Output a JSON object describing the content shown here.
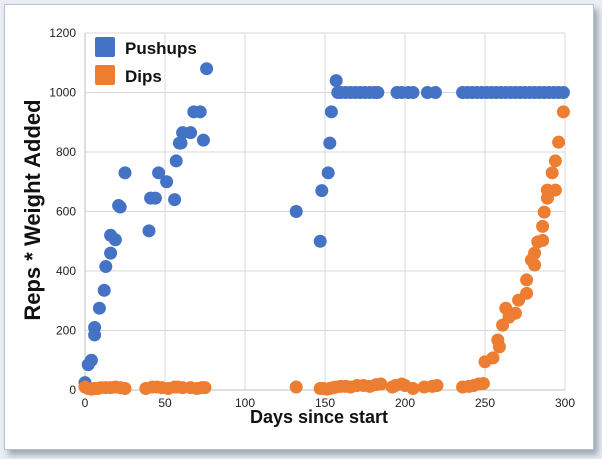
{
  "chart_data": {
    "type": "scatter",
    "title": "",
    "xlabel": "Days since start",
    "ylabel": "Reps * Weight Added",
    "xlim": [
      0,
      300
    ],
    "ylim": [
      0,
      1200
    ],
    "xticks": [
      0,
      50,
      100,
      150,
      200,
      250,
      300
    ],
    "yticks": [
      0,
      200,
      400,
      600,
      800,
      1000,
      1200
    ],
    "grid": true,
    "legend_position": "top-left",
    "series": [
      {
        "name": "Pushups",
        "color": "#4472c4",
        "points": [
          [
            0,
            25
          ],
          [
            2,
            85
          ],
          [
            4,
            100
          ],
          [
            6,
            185
          ],
          [
            6,
            210
          ],
          [
            9,
            275
          ],
          [
            12,
            335
          ],
          [
            13,
            415
          ],
          [
            16,
            460
          ],
          [
            16,
            520
          ],
          [
            19,
            505
          ],
          [
            21,
            620
          ],
          [
            22,
            615
          ],
          [
            25,
            730
          ],
          [
            40,
            535
          ],
          [
            41,
            645
          ],
          [
            44,
            645
          ],
          [
            46,
            730
          ],
          [
            51,
            700
          ],
          [
            56,
            640
          ],
          [
            57,
            770
          ],
          [
            59,
            830
          ],
          [
            60,
            830
          ],
          [
            61,
            865
          ],
          [
            66,
            865
          ],
          [
            68,
            935
          ],
          [
            72,
            935
          ],
          [
            74,
            840
          ],
          [
            76,
            1080
          ],
          [
            132,
            600
          ],
          [
            147,
            500
          ],
          [
            148,
            670
          ],
          [
            152,
            730
          ],
          [
            153,
            830
          ],
          [
            154,
            935
          ],
          [
            157,
            1040
          ],
          [
            158,
            1000
          ],
          [
            160,
            1000
          ],
          [
            163,
            1000
          ],
          [
            166,
            1000
          ],
          [
            169,
            1000
          ],
          [
            172,
            1000
          ],
          [
            175,
            1000
          ],
          [
            178,
            1000
          ],
          [
            181,
            1000
          ],
          [
            183,
            1000
          ],
          [
            195,
            1000
          ],
          [
            198,
            1000
          ],
          [
            202,
            1000
          ],
          [
            205,
            1000
          ],
          [
            214,
            1000
          ],
          [
            219,
            1000
          ],
          [
            236,
            1000
          ],
          [
            239,
            1000
          ],
          [
            242,
            1000
          ],
          [
            245,
            1000
          ],
          [
            248,
            1000
          ],
          [
            251,
            1000
          ],
          [
            254,
            1000
          ],
          [
            257,
            1000
          ],
          [
            260,
            1000
          ],
          [
            263,
            1000
          ],
          [
            266,
            1000
          ],
          [
            269,
            1000
          ],
          [
            272,
            1000
          ],
          [
            275,
            1000
          ],
          [
            278,
            1000
          ],
          [
            281,
            1000
          ],
          [
            284,
            1000
          ],
          [
            287,
            1000
          ],
          [
            290,
            1000
          ],
          [
            293,
            1000
          ],
          [
            296,
            1000
          ],
          [
            299,
            1000
          ]
        ]
      },
      {
        "name": "Dips",
        "color": "#ed7d31",
        "points": [
          [
            0,
            10
          ],
          [
            2,
            5
          ],
          [
            4,
            3
          ],
          [
            6,
            5
          ],
          [
            8,
            5
          ],
          [
            10,
            8
          ],
          [
            13,
            8
          ],
          [
            16,
            8
          ],
          [
            19,
            10
          ],
          [
            22,
            8
          ],
          [
            25,
            5
          ],
          [
            38,
            5
          ],
          [
            42,
            10
          ],
          [
            45,
            10
          ],
          [
            48,
            8
          ],
          [
            52,
            5
          ],
          [
            56,
            10
          ],
          [
            58,
            10
          ],
          [
            61,
            8
          ],
          [
            66,
            8
          ],
          [
            70,
            5
          ],
          [
            73,
            8
          ],
          [
            75,
            8
          ],
          [
            132,
            10
          ],
          [
            147,
            5
          ],
          [
            149,
            5
          ],
          [
            151,
            3
          ],
          [
            153,
            5
          ],
          [
            155,
            8
          ],
          [
            157,
            10
          ],
          [
            160,
            12
          ],
          [
            163,
            12
          ],
          [
            166,
            10
          ],
          [
            170,
            15
          ],
          [
            174,
            15
          ],
          [
            178,
            12
          ],
          [
            182,
            18
          ],
          [
            185,
            20
          ],
          [
            192,
            10
          ],
          [
            194,
            15
          ],
          [
            198,
            20
          ],
          [
            200,
            15
          ],
          [
            205,
            5
          ],
          [
            212,
            10
          ],
          [
            217,
            12
          ],
          [
            220,
            15
          ],
          [
            236,
            10
          ],
          [
            240,
            12
          ],
          [
            243,
            15
          ],
          [
            246,
            20
          ],
          [
            249,
            22
          ],
          [
            250,
            95
          ],
          [
            255,
            108
          ],
          [
            258,
            168
          ],
          [
            259,
            145
          ],
          [
            261,
            218
          ],
          [
            263,
            275
          ],
          [
            265,
            245
          ],
          [
            269,
            258
          ],
          [
            271,
            302
          ],
          [
            276,
            325
          ],
          [
            276,
            370
          ],
          [
            279,
            437
          ],
          [
            281,
            420
          ],
          [
            281,
            460
          ],
          [
            283,
            498
          ],
          [
            286,
            503
          ],
          [
            286,
            550
          ],
          [
            287,
            598
          ],
          [
            289,
            645
          ],
          [
            289,
            672
          ],
          [
            294,
            672
          ],
          [
            292,
            730
          ],
          [
            294,
            770
          ],
          [
            296,
            833
          ],
          [
            299,
            935
          ]
        ]
      }
    ]
  }
}
